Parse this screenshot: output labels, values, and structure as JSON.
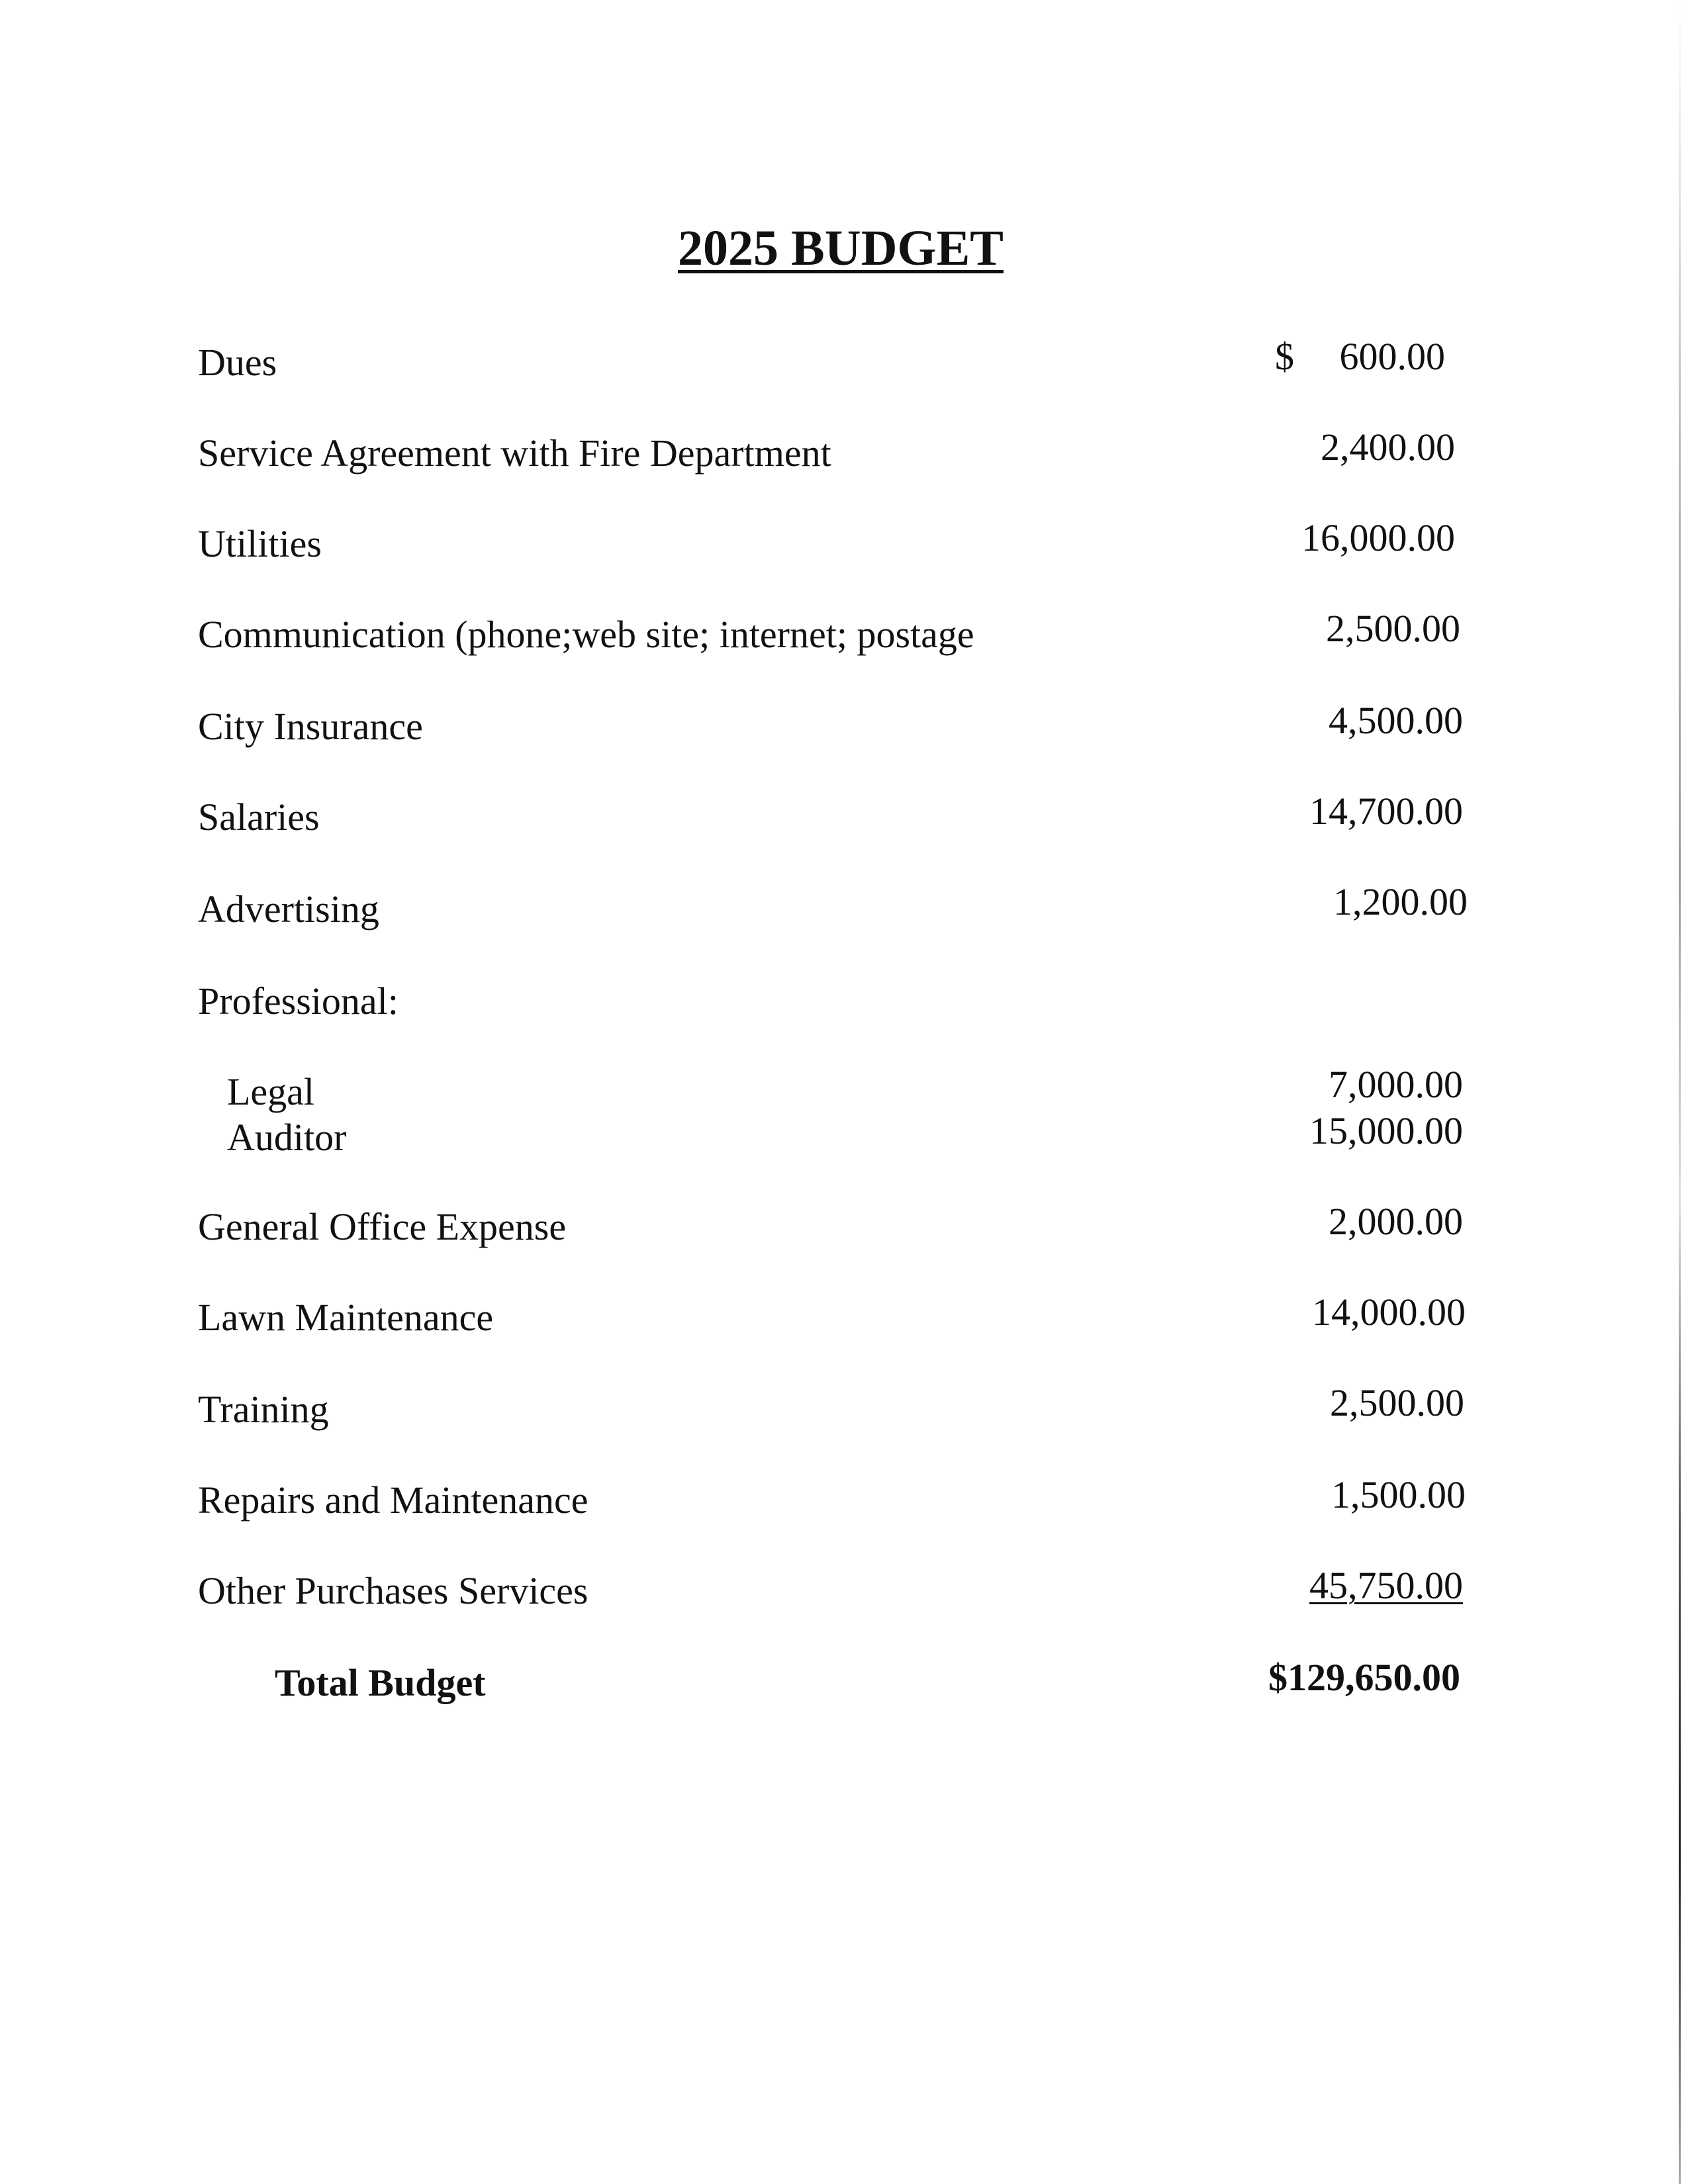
{
  "title": "2025 BUDGET",
  "currency_symbol": "$",
  "rows": [
    {
      "label": "Dues",
      "amount": "600.00"
    },
    {
      "label": "Service Agreement with Fire Department",
      "amount": "2,400.00"
    },
    {
      "label": "Utilities",
      "amount": "16,000.00"
    },
    {
      "label": "Communication (phone;web site; internet; postage",
      "amount": "2,500.00"
    },
    {
      "label": "City Insurance",
      "amount": "4,500.00"
    },
    {
      "label": "Salaries",
      "amount": "14,700.00"
    },
    {
      "label": "Advertising",
      "amount": "1,200.00"
    },
    {
      "label": "Professional:",
      "amount": ""
    },
    {
      "label": "Legal",
      "amount": "7,000.00",
      "indent": true
    },
    {
      "label": "Auditor",
      "amount": "15,000.00",
      "indent": true
    },
    {
      "label": "General Office Expense",
      "amount": "2,000.00"
    },
    {
      "label": "Lawn Maintenance",
      "amount": "14,000.00"
    },
    {
      "label": "Training",
      "amount": "2,500.00"
    },
    {
      "label": "Repairs and Maintenance",
      "amount": "1,500.00"
    },
    {
      "label": "Other Purchases Services",
      "amount": "45,750.00",
      "underlined": true
    }
  ],
  "total": {
    "label": "Total Budget",
    "amount": "$129,650.00"
  }
}
